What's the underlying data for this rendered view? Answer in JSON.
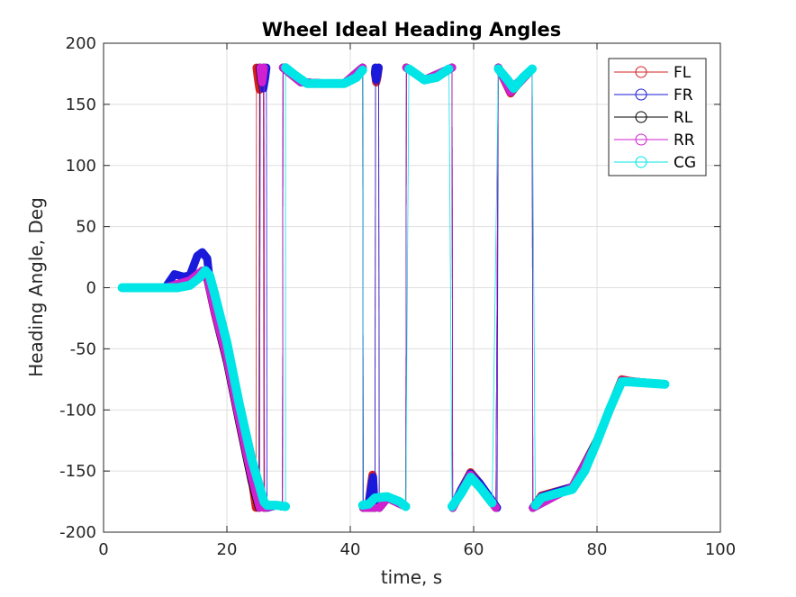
{
  "chart_data": {
    "type": "line",
    "title": "Wheel Ideal Heading Angles",
    "xlabel": "time, s",
    "ylabel": "Heading Angle, Deg",
    "xlim": [
      0,
      100
    ],
    "ylim": [
      -200,
      200
    ],
    "xticks": [
      0,
      20,
      40,
      60,
      80,
      100
    ],
    "yticks": [
      -200,
      -150,
      -100,
      -50,
      0,
      50,
      100,
      150,
      200
    ],
    "xtick_labels": [
      "0",
      "20",
      "40",
      "60",
      "80",
      "100"
    ],
    "ytick_labels": [
      "-200",
      "-150",
      "-100",
      "-50",
      "0",
      "50",
      "100",
      "150",
      "200"
    ],
    "grid": true,
    "legend_position": "top-right",
    "series": [
      {
        "name": "FL",
        "color": "#d62020",
        "segments": [
          [
            [
              3,
              0
            ],
            [
              10,
              0
            ],
            [
              12,
              3
            ],
            [
              14,
              6
            ],
            [
              16,
              10
            ],
            [
              16.8,
              8
            ],
            [
              18,
              -18
            ],
            [
              20,
              -55
            ],
            [
              22,
              -105
            ],
            [
              24,
              -155
            ],
            [
              24.7,
              -180
            ]
          ],
          [
            [
              24.8,
              180
            ],
            [
              25,
              172
            ],
            [
              25.3,
              162
            ],
            [
              25.6,
              168
            ],
            [
              25.9,
              180
            ]
          ],
          [
            [
              26,
              -180
            ],
            [
              28,
              -178
            ],
            [
              29,
              -179
            ]
          ],
          [
            [
              29.1,
              180
            ],
            [
              32,
              168
            ],
            [
              36,
              167
            ],
            [
              39,
              167
            ],
            [
              41.5,
              178
            ],
            [
              42,
              180
            ]
          ],
          [
            [
              42.1,
              -180
            ],
            [
              43,
              -176
            ],
            [
              43.4,
              -160
            ],
            [
              43.6,
              -153
            ],
            [
              43.8,
              -175
            ],
            [
              44,
              -180
            ]
          ],
          [
            [
              44.1,
              180
            ],
            [
              44,
              175
            ],
            [
              44.2,
              168
            ],
            [
              44.4,
              172
            ],
            [
              44.6,
              180
            ]
          ],
          [
            [
              44.7,
              -180
            ],
            [
              46,
              -172
            ],
            [
              48,
              -175
            ],
            [
              49,
              -179
            ]
          ],
          [
            [
              49.1,
              180
            ],
            [
              52,
              170
            ],
            [
              54,
              172
            ],
            [
              56.5,
              180
            ]
          ],
          [
            [
              56.6,
              -180
            ],
            [
              58,
              -165
            ],
            [
              59.5,
              -151
            ],
            [
              61,
              -160
            ],
            [
              63.6,
              -180
            ]
          ],
          [
            [
              64,
              180
            ],
            [
              66,
              159
            ],
            [
              68,
              172
            ],
            [
              69.5,
              179
            ]
          ],
          [
            [
              69.6,
              -180
            ],
            [
              71,
              -170
            ],
            [
              76,
              -163
            ],
            [
              78,
              -150
            ],
            [
              80,
              -125
            ],
            [
              82,
              -100
            ],
            [
              84,
              -75
            ],
            [
              85,
              -76
            ],
            [
              88,
              -78
            ],
            [
              91,
              -79
            ]
          ]
        ]
      },
      {
        "name": "FR",
        "color": "#1a1adb",
        "segments": [
          [
            [
              3,
              0
            ],
            [
              10,
              0
            ],
            [
              11.5,
              11
            ],
            [
              13,
              9
            ],
            [
              14,
              10
            ],
            [
              15.2,
              26
            ],
            [
              16,
              29
            ],
            [
              16.8,
              24
            ],
            [
              17.2,
              6
            ],
            [
              18,
              -18
            ],
            [
              20,
              -60
            ],
            [
              22,
              -105
            ],
            [
              24,
              -150
            ],
            [
              25.3,
              -180
            ]
          ],
          [
            [
              25.4,
              180
            ],
            [
              25.6,
              170
            ],
            [
              25.9,
              163
            ],
            [
              26.2,
              172
            ],
            [
              26.4,
              180
            ]
          ],
          [
            [
              26.5,
              -180
            ],
            [
              28,
              -178
            ],
            [
              29,
              -179
            ]
          ],
          [
            [
              29.1,
              180
            ],
            [
              32,
              168
            ],
            [
              36,
              167
            ],
            [
              39,
              167
            ],
            [
              41.5,
              178
            ],
            [
              42,
              180
            ]
          ],
          [
            [
              42.1,
              -180
            ],
            [
              43,
              -176
            ],
            [
              43.5,
              -160
            ],
            [
              43.7,
              -155
            ],
            [
              43.9,
              -175
            ],
            [
              44,
              -180
            ]
          ],
          [
            [
              44.1,
              180
            ],
            [
              44,
              176
            ],
            [
              44.2,
              170
            ],
            [
              44.4,
              174
            ],
            [
              44.6,
              180
            ]
          ],
          [
            [
              44.7,
              -180
            ],
            [
              46,
              -172
            ],
            [
              48,
              -175
            ],
            [
              49,
              -179
            ]
          ],
          [
            [
              49.1,
              180
            ],
            [
              52,
              170
            ],
            [
              54,
              172
            ],
            [
              56.5,
              180
            ]
          ],
          [
            [
              56.6,
              -180
            ],
            [
              58,
              -165
            ],
            [
              59.5,
              -152
            ],
            [
              61,
              -160
            ],
            [
              63.8,
              -180
            ]
          ],
          [
            [
              64,
              180
            ],
            [
              66,
              162
            ],
            [
              68,
              172
            ],
            [
              69.5,
              179
            ]
          ],
          [
            [
              69.6,
              -180
            ],
            [
              71,
              -171
            ],
            [
              76,
              -163
            ],
            [
              78,
              -150
            ],
            [
              80,
              -126
            ],
            [
              82,
              -100
            ],
            [
              84,
              -76
            ],
            [
              85,
              -77
            ],
            [
              88,
              -78
            ],
            [
              91,
              -79
            ]
          ]
        ]
      },
      {
        "name": "RL",
        "color": "#000000",
        "segments": [
          [
            [
              3,
              0
            ],
            [
              10,
              0
            ],
            [
              12,
              2
            ],
            [
              14,
              5
            ],
            [
              16,
              12
            ],
            [
              16.8,
              8
            ],
            [
              18,
              -20
            ],
            [
              20,
              -60
            ],
            [
              22,
              -110
            ],
            [
              24,
              -158
            ],
            [
              25.2,
              -180
            ]
          ],
          [
            [
              25.3,
              180
            ],
            [
              25.6,
              168
            ],
            [
              26,
              180
            ]
          ],
          [
            [
              26.1,
              -180
            ],
            [
              28,
              -178
            ],
            [
              29,
              -179
            ]
          ],
          [
            [
              29.1,
              180
            ],
            [
              32,
              168
            ],
            [
              36,
              167
            ],
            [
              39,
              167
            ],
            [
              42,
              180
            ]
          ],
          [
            [
              42.1,
              -180
            ],
            [
              44,
              -180
            ]
          ],
          [
            [
              44.7,
              -180
            ],
            [
              46,
              -172
            ],
            [
              49,
              -179
            ]
          ],
          [
            [
              49.1,
              180
            ],
            [
              52,
              170
            ],
            [
              56.5,
              180
            ]
          ],
          [
            [
              56.6,
              -180
            ],
            [
              59.5,
              -153
            ],
            [
              63.6,
              -180
            ]
          ],
          [
            [
              64,
              180
            ],
            [
              66,
              160
            ],
            [
              69.5,
              179
            ]
          ],
          [
            [
              69.6,
              -180
            ],
            [
              76,
              -163
            ],
            [
              80,
              -125
            ],
            [
              84,
              -76
            ],
            [
              91,
              -79
            ]
          ]
        ]
      },
      {
        "name": "RR",
        "color": "#d020d0",
        "segments": [
          [
            [
              3,
              0
            ],
            [
              10,
              0
            ],
            [
              12,
              3
            ],
            [
              14,
              6
            ],
            [
              16,
              14
            ],
            [
              16.8,
              9
            ],
            [
              18,
              -19
            ],
            [
              20,
              -58
            ],
            [
              22,
              -108
            ],
            [
              24,
              -155
            ],
            [
              25.3,
              -180
            ]
          ],
          [
            [
              25.4,
              180
            ],
            [
              25.7,
              168
            ],
            [
              26,
              180
            ]
          ],
          [
            [
              26.1,
              -180
            ],
            [
              28,
              -178
            ],
            [
              29,
              -179
            ]
          ],
          [
            [
              29.1,
              180
            ],
            [
              32,
              168
            ],
            [
              36,
              167
            ],
            [
              39,
              167
            ],
            [
              42,
              180
            ]
          ],
          [
            [
              42.1,
              -180
            ],
            [
              44,
              -180
            ]
          ],
          [
            [
              44.7,
              -180
            ],
            [
              46,
              -172
            ],
            [
              49,
              -179
            ]
          ],
          [
            [
              49.1,
              180
            ],
            [
              52,
              170
            ],
            [
              56.5,
              180
            ]
          ],
          [
            [
              56.6,
              -180
            ],
            [
              59.5,
              -153
            ],
            [
              63.6,
              -180
            ]
          ],
          [
            [
              64,
              180
            ],
            [
              66,
              160
            ],
            [
              69.5,
              179
            ]
          ],
          [
            [
              69.6,
              -180
            ],
            [
              76,
              -163
            ],
            [
              80,
              -126
            ],
            [
              84,
              -76
            ],
            [
              91,
              -79
            ]
          ]
        ]
      },
      {
        "name": "CG",
        "color": "#00e5e5",
        "segments": [
          [
            [
              3,
              0
            ],
            [
              12,
              0
            ],
            [
              14,
              2
            ],
            [
              15.5,
              8
            ],
            [
              16.5,
              14
            ],
            [
              17.2,
              10
            ],
            [
              18,
              -5
            ],
            [
              20,
              -45
            ],
            [
              22,
              -95
            ],
            [
              24,
              -140
            ],
            [
              26,
              -175
            ],
            [
              26.5,
              -178
            ],
            [
              28,
              -178
            ],
            [
              29.5,
              -179
            ]
          ],
          [
            [
              29.5,
              180
            ],
            [
              31,
              174
            ],
            [
              33,
              167
            ],
            [
              36,
              167
            ],
            [
              39,
              167
            ],
            [
              41,
              172
            ],
            [
              42,
              178
            ]
          ],
          [
            [
              42,
              -178
            ],
            [
              43,
              -177
            ],
            [
              44,
              -172
            ],
            [
              46,
              -171
            ],
            [
              48,
              -175
            ],
            [
              49,
              -179
            ]
          ],
          [
            [
              49.5,
              179
            ],
            [
              52,
              170
            ],
            [
              54,
              172
            ],
            [
              56,
              179
            ]
          ],
          [
            [
              56.5,
              -179
            ],
            [
              58,
              -168
            ],
            [
              59.5,
              -155
            ],
            [
              61,
              -163
            ],
            [
              63,
              -176
            ]
          ],
          [
            [
              64,
              179
            ],
            [
              65.5,
              170
            ],
            [
              66.5,
              163
            ],
            [
              68,
              172
            ],
            [
              69.5,
              179
            ]
          ],
          [
            [
              70,
              -178
            ],
            [
              71,
              -172
            ],
            [
              73,
              -169
            ],
            [
              76,
              -165
            ],
            [
              78,
              -150
            ],
            [
              80,
              -126
            ],
            [
              82,
              -100
            ],
            [
              84,
              -77
            ],
            [
              85,
              -77
            ],
            [
              88,
              -78
            ],
            [
              91,
              -79
            ]
          ]
        ]
      }
    ]
  }
}
